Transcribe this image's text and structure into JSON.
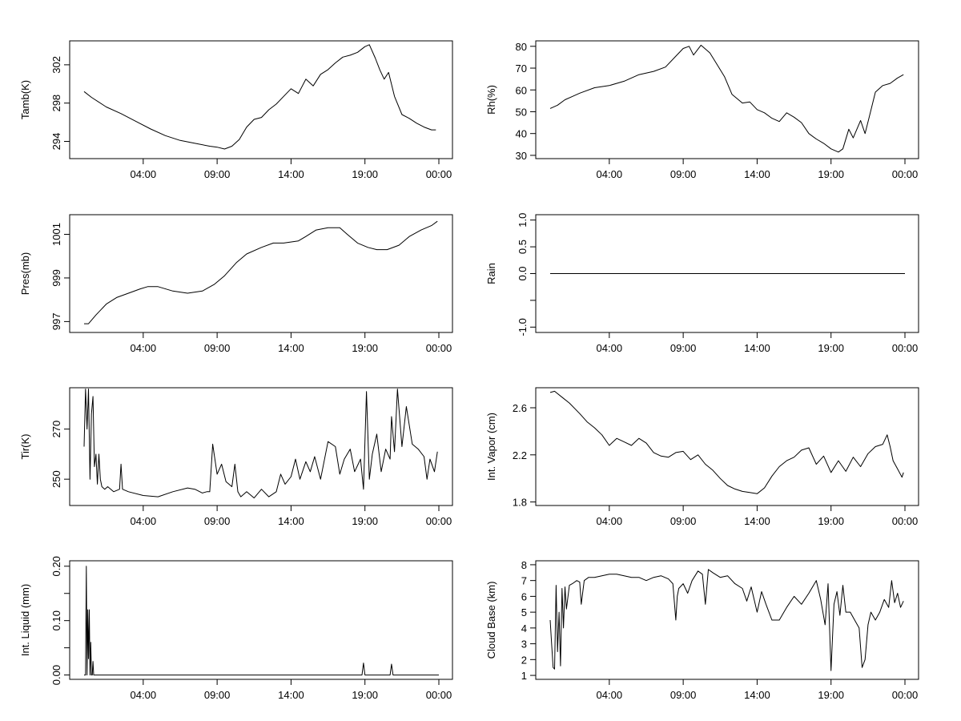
{
  "chart_data": [
    {
      "type": "line",
      "title": "",
      "xlabel": "",
      "ylabel": "Tamb(K)",
      "xlim": [
        0,
        24
      ],
      "xticks": [
        4,
        9,
        14,
        19,
        24
      ],
      "xtick_labels": [
        "04:00",
        "09:00",
        "14:00",
        "19:00",
        "00:00"
      ],
      "ylim": [
        292.2,
        304.5
      ],
      "yticks": [
        294,
        298,
        302
      ],
      "ytick_labels": [
        "294",
        "298",
        "302"
      ],
      "ytick_rotated": true,
      "grid": false,
      "series": [
        {
          "x": [
            0.0,
            0.5,
            1.5,
            2.5,
            3.5,
            4.5,
            5.5,
            6.5,
            7.5,
            8.5,
            9.0,
            9.5,
            10.0,
            10.5,
            11.0,
            11.5,
            12.0,
            12.5,
            13.0,
            13.5,
            14.0,
            14.5,
            15.0,
            15.5,
            16.0,
            16.5,
            17.0,
            17.5,
            18.0,
            18.5,
            19.0,
            19.3,
            19.7,
            20.0,
            20.3,
            20.6,
            21.0,
            21.5,
            22.0,
            22.5,
            23.0,
            23.5,
            23.8
          ],
          "y": [
            299.2,
            298.6,
            297.6,
            296.9,
            296.1,
            295.3,
            294.6,
            294.1,
            293.8,
            293.5,
            293.4,
            293.2,
            293.5,
            294.2,
            295.5,
            296.3,
            296.5,
            297.3,
            297.9,
            298.7,
            299.5,
            299.0,
            300.5,
            299.8,
            301.0,
            301.5,
            302.2,
            302.8,
            303.0,
            303.3,
            303.9,
            304.1,
            302.7,
            301.5,
            300.5,
            301.2,
            298.7,
            296.8,
            296.4,
            295.9,
            295.5,
            295.2,
            295.2
          ]
        }
      ]
    },
    {
      "type": "line",
      "title": "",
      "xlabel": "",
      "ylabel": "Rh(%)",
      "xlim": [
        0,
        24
      ],
      "xticks": [
        4,
        9,
        14,
        19,
        24
      ],
      "xtick_labels": [
        "04:00",
        "09:00",
        "14:00",
        "19:00",
        "00:00"
      ],
      "ylim": [
        28.5,
        82.5
      ],
      "yticks": [
        30,
        40,
        50,
        60,
        70,
        80
      ],
      "ytick_labels": [
        "30",
        "40",
        "50",
        "60",
        "70",
        "80"
      ],
      "ytick_rotated": false,
      "grid": false,
      "series": [
        {
          "x": [
            0.0,
            0.5,
            1.0,
            1.5,
            2.0,
            3.0,
            4.0,
            5.0,
            6.0,
            7.0,
            7.8,
            8.5,
            9.0,
            9.4,
            9.7,
            10.2,
            10.8,
            11.3,
            11.8,
            12.3,
            13.0,
            13.5,
            14.0,
            14.5,
            15.0,
            15.5,
            16.0,
            16.5,
            17.0,
            17.5,
            18.0,
            18.5,
            19.0,
            19.5,
            19.8,
            20.2,
            20.5,
            21.0,
            21.3,
            21.6,
            22.0,
            22.5,
            23.0,
            23.5,
            23.9
          ],
          "y": [
            51.5,
            53.0,
            55.5,
            57.0,
            58.5,
            61.0,
            62.0,
            64.0,
            67.0,
            68.5,
            70.5,
            75.5,
            79.0,
            80.0,
            76.0,
            80.5,
            77.0,
            71.5,
            66.0,
            58.0,
            54.0,
            54.5,
            51.0,
            49.5,
            47.0,
            45.5,
            49.5,
            47.5,
            45.0,
            40.0,
            37.5,
            35.5,
            33.0,
            31.5,
            33.0,
            42.0,
            38.0,
            46.0,
            40.0,
            48.0,
            59.0,
            62.0,
            63.0,
            65.5,
            67.0
          ]
        }
      ]
    },
    {
      "type": "line",
      "title": "",
      "xlabel": "",
      "ylabel": "Pres(mb)",
      "xlim": [
        0,
        24
      ],
      "xticks": [
        4,
        9,
        14,
        19,
        24
      ],
      "xtick_labels": [
        "04:00",
        "09:00",
        "14:00",
        "19:00",
        "00:00"
      ],
      "ylim": [
        996.5,
        1001.9
      ],
      "yticks": [
        997,
        999,
        1001
      ],
      "ytick_labels": [
        "997",
        "999",
        "1001"
      ],
      "ytick_rotated": true,
      "grid": false,
      "series": [
        {
          "x": [
            0.0,
            0.3,
            0.8,
            1.5,
            2.2,
            3.0,
            3.8,
            4.3,
            5.0,
            6.0,
            7.0,
            8.0,
            8.8,
            9.5,
            10.3,
            11.0,
            12.0,
            12.8,
            13.5,
            14.5,
            15.0,
            15.7,
            16.5,
            17.3,
            17.8,
            18.5,
            19.2,
            19.8,
            20.5,
            21.3,
            22.0,
            22.8,
            23.5,
            23.9
          ],
          "y": [
            996.9,
            996.9,
            997.3,
            997.8,
            998.1,
            998.3,
            998.5,
            998.6,
            998.6,
            998.4,
            998.3,
            998.4,
            998.7,
            999.1,
            999.7,
            1000.1,
            1000.4,
            1000.6,
            1000.6,
            1000.7,
            1000.9,
            1001.2,
            1001.3,
            1001.3,
            1001.0,
            1000.6,
            1000.4,
            1000.3,
            1000.3,
            1000.5,
            1000.9,
            1001.2,
            1001.4,
            1001.6
          ]
        }
      ]
    },
    {
      "type": "line",
      "title": "",
      "xlabel": "",
      "ylabel": "Rain",
      "xlim": [
        0,
        24
      ],
      "xticks": [
        4,
        9,
        14,
        19,
        24
      ],
      "xtick_labels": [
        "04:00",
        "09:00",
        "14:00",
        "19:00",
        "00:00"
      ],
      "ylim": [
        -1.1,
        1.1
      ],
      "yticks": [
        -1.0,
        -0.5,
        0.0,
        0.5,
        1.0
      ],
      "ytick_labels": [
        "-1.0",
        "",
        "0.0",
        "0.5",
        "1.0"
      ],
      "ytick_rotated": true,
      "grid": false,
      "series": [
        {
          "x": [
            0.0,
            24.0
          ],
          "y": [
            0.0,
            0.0
          ]
        }
      ]
    },
    {
      "type": "line",
      "title": "",
      "xlabel": "",
      "ylabel": "Tir(K)",
      "xlim": [
        0,
        24
      ],
      "xticks": [
        4,
        9,
        14,
        19,
        24
      ],
      "xtick_labels": [
        "04:00",
        "09:00",
        "14:00",
        "19:00",
        "00:00"
      ],
      "ylim": [
        239.5,
        286.5
      ],
      "yticks": [
        250,
        270
      ],
      "ytick_labels": [
        "250",
        "270"
      ],
      "ytick_rotated": true,
      "grid": false,
      "series": [
        {
          "x": [
            0.0,
            0.1,
            0.2,
            0.3,
            0.4,
            0.5,
            0.6,
            0.7,
            0.8,
            0.9,
            1.0,
            1.1,
            1.2,
            1.4,
            1.6,
            2.0,
            2.4,
            2.5,
            2.6,
            3.0,
            4.0,
            5.0,
            6.0,
            7.0,
            7.5,
            8.0,
            8.3,
            8.5,
            8.7,
            9.0,
            9.3,
            9.6,
            10.0,
            10.2,
            10.4,
            10.6,
            11.0,
            11.5,
            12.0,
            12.5,
            13.0,
            13.3,
            13.6,
            14.0,
            14.3,
            14.6,
            15.0,
            15.3,
            15.6,
            16.0,
            16.5,
            17.0,
            17.3,
            17.6,
            18.0,
            18.3,
            18.7,
            18.9,
            19.1,
            19.3,
            19.5,
            19.8,
            20.1,
            20.4,
            20.7,
            20.8,
            21.0,
            21.2,
            21.5,
            21.8,
            22.2,
            22.6,
            23.0,
            23.2,
            23.4,
            23.7,
            23.9
          ],
          "y": [
            263.0,
            286.0,
            270.0,
            286.0,
            250.0,
            276.0,
            283.0,
            255.0,
            260.0,
            248.0,
            260.0,
            250.0,
            247.0,
            246.0,
            247.0,
            245.0,
            246.0,
            256.0,
            246.0,
            245.0,
            243.5,
            243.0,
            245.0,
            246.5,
            246.0,
            244.5,
            245.0,
            245.0,
            264.0,
            252.0,
            256.0,
            249.0,
            247.0,
            256.0,
            245.0,
            243.0,
            245.0,
            242.5,
            246.0,
            243.0,
            245.0,
            252.0,
            248.0,
            251.0,
            258.0,
            250.0,
            257.0,
            253.0,
            259.0,
            250.0,
            265.0,
            263.0,
            252.0,
            258.0,
            262.0,
            253.0,
            258.0,
            246.0,
            285.0,
            250.0,
            260.0,
            268.0,
            253.0,
            262.0,
            258.0,
            275.0,
            261.0,
            286.0,
            263.0,
            279.0,
            264.0,
            262.0,
            259.0,
            250.0,
            258.0,
            253.0,
            261.0
          ]
        }
      ]
    },
    {
      "type": "line",
      "title": "",
      "xlabel": "",
      "ylabel": "Int. Vapor (cm)",
      "xlim": [
        0,
        24
      ],
      "xticks": [
        4,
        9,
        14,
        19,
        24
      ],
      "xtick_labels": [
        "04:00",
        "09:00",
        "14:00",
        "19:00",
        "00:00"
      ],
      "ylim": [
        1.77,
        2.77
      ],
      "yticks": [
        1.8,
        2.2,
        2.6
      ],
      "ytick_labels": [
        "1.8",
        "2.2",
        "2.6"
      ],
      "ytick_rotated": false,
      "grid": false,
      "series": [
        {
          "x": [
            0.0,
            0.3,
            0.8,
            1.3,
            2.0,
            2.5,
            3.0,
            3.5,
            4.0,
            4.5,
            5.0,
            5.5,
            6.0,
            6.5,
            7.0,
            7.5,
            8.0,
            8.5,
            9.0,
            9.5,
            10.0,
            10.5,
            11.0,
            11.5,
            12.0,
            12.5,
            13.0,
            13.5,
            14.0,
            14.5,
            15.0,
            15.5,
            16.0,
            16.5,
            17.0,
            17.5,
            18.0,
            18.5,
            19.0,
            19.5,
            20.0,
            20.5,
            21.0,
            21.5,
            22.0,
            22.5,
            22.8,
            23.0,
            23.2,
            23.5,
            23.8,
            23.9
          ],
          "y": [
            2.73,
            2.74,
            2.69,
            2.64,
            2.55,
            2.48,
            2.43,
            2.37,
            2.28,
            2.34,
            2.31,
            2.28,
            2.34,
            2.3,
            2.22,
            2.19,
            2.18,
            2.22,
            2.23,
            2.16,
            2.2,
            2.12,
            2.07,
            2.0,
            1.94,
            1.91,
            1.89,
            1.88,
            1.87,
            1.92,
            2.02,
            2.1,
            2.15,
            2.18,
            2.24,
            2.26,
            2.12,
            2.19,
            2.05,
            2.15,
            2.06,
            2.18,
            2.1,
            2.21,
            2.27,
            2.29,
            2.37,
            2.27,
            2.15,
            2.08,
            2.01,
            2.05
          ]
        }
      ]
    },
    {
      "type": "line",
      "title": "",
      "xlabel": "",
      "ylabel": "Int. Liquid (mm)",
      "xlim": [
        0,
        24
      ],
      "xticks": [
        4,
        9,
        14,
        19,
        24
      ],
      "xtick_labels": [
        "04:00",
        "09:00",
        "14:00",
        "19:00",
        "00:00"
      ],
      "ylim": [
        -0.008,
        0.21
      ],
      "yticks": [
        0.0,
        0.05,
        0.1,
        0.15,
        0.2
      ],
      "ytick_labels": [
        "0.00",
        "",
        "0.10",
        "",
        "0.20"
      ],
      "ytick_rotated": true,
      "grid": false,
      "series": [
        {
          "x": [
            0.0,
            0.1,
            0.15,
            0.2,
            0.25,
            0.3,
            0.35,
            0.4,
            0.45,
            0.5,
            0.55,
            0.6,
            0.65,
            0.7,
            0.8,
            0.9,
            1.0,
            18.8,
            18.9,
            19.0,
            19.1,
            20.7,
            20.8,
            20.9,
            21.0,
            24.0
          ],
          "y": [
            0.0,
            0.0,
            0.2,
            0.0,
            0.12,
            0.03,
            0.12,
            0.0,
            0.06,
            0.0,
            0.0,
            0.025,
            0.0,
            0.0,
            0.0,
            0.0,
            0.0,
            0.0,
            0.022,
            0.0,
            0.0,
            0.0,
            0.02,
            0.0,
            0.0,
            0.0
          ]
        }
      ]
    },
    {
      "type": "line",
      "title": "",
      "xlabel": "",
      "ylabel": "Cloud Base (km)",
      "xlim": [
        0,
        24
      ],
      "xticks": [
        4,
        9,
        14,
        19,
        24
      ],
      "xtick_labels": [
        "04:00",
        "09:00",
        "14:00",
        "19:00",
        "00:00"
      ],
      "ylim": [
        0.75,
        8.25
      ],
      "yticks": [
        1,
        2,
        3,
        4,
        5,
        6,
        7,
        8
      ],
      "ytick_labels": [
        "1",
        "2",
        "3",
        "4",
        "5",
        "6",
        "7",
        "8"
      ],
      "ytick_rotated": false,
      "grid": false,
      "series": [
        {
          "x": [
            0.0,
            0.1,
            0.2,
            0.3,
            0.4,
            0.5,
            0.6,
            0.7,
            0.8,
            0.9,
            1.0,
            1.1,
            1.3,
            1.5,
            1.8,
            2.0,
            2.1,
            2.3,
            2.6,
            3.0,
            3.5,
            4.0,
            4.5,
            5.0,
            5.5,
            6.0,
            6.5,
            7.0,
            7.5,
            8.0,
            8.3,
            8.5,
            8.6,
            8.7,
            9.0,
            9.3,
            9.6,
            10.0,
            10.3,
            10.5,
            10.7,
            11.0,
            11.5,
            12.0,
            12.5,
            13.0,
            13.3,
            13.6,
            14.0,
            14.3,
            14.6,
            15.0,
            15.5,
            16.0,
            16.5,
            17.0,
            17.5,
            18.0,
            18.3,
            18.6,
            18.8,
            19.0,
            19.2,
            19.4,
            19.6,
            19.8,
            20.0,
            20.3,
            20.6,
            20.9,
            21.1,
            21.3,
            21.5,
            21.7,
            22.0,
            22.3,
            22.6,
            22.9,
            23.1,
            23.3,
            23.5,
            23.7,
            23.9
          ],
          "y": [
            4.5,
            3.0,
            1.5,
            1.4,
            6.7,
            2.5,
            5.0,
            1.6,
            6.5,
            4.0,
            6.6,
            5.2,
            6.7,
            6.8,
            7.0,
            6.9,
            5.5,
            7.0,
            7.2,
            7.2,
            7.3,
            7.4,
            7.4,
            7.3,
            7.2,
            7.2,
            7.0,
            7.2,
            7.3,
            7.1,
            6.8,
            4.5,
            6.0,
            6.5,
            6.8,
            6.2,
            7.0,
            7.6,
            7.4,
            5.5,
            7.7,
            7.5,
            7.2,
            7.3,
            6.8,
            6.5,
            5.7,
            6.6,
            5.0,
            6.3,
            5.5,
            4.5,
            4.5,
            5.3,
            6.0,
            5.5,
            6.2,
            7.0,
            5.8,
            4.2,
            6.8,
            1.3,
            5.5,
            6.3,
            4.8,
            6.7,
            5.0,
            5.0,
            4.5,
            4.0,
            1.5,
            2.0,
            4.2,
            5.0,
            4.5,
            5.0,
            5.8,
            5.3,
            7.0,
            5.6,
            6.2,
            5.3,
            5.7
          ]
        }
      ]
    }
  ]
}
